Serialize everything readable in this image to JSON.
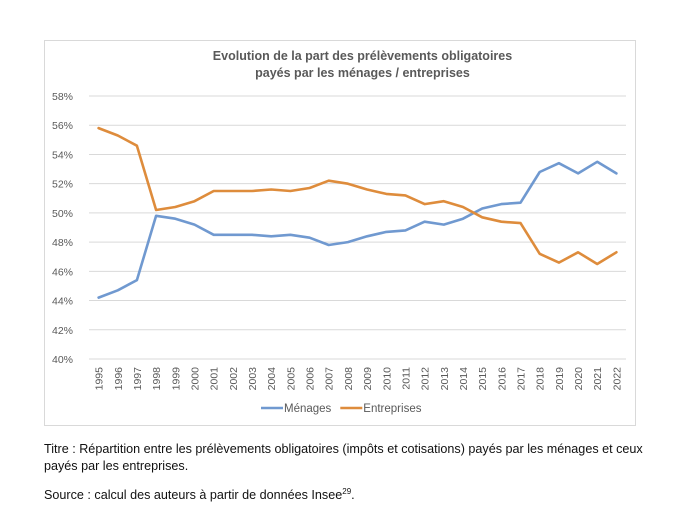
{
  "chart_data": {
    "type": "line",
    "title_lines": [
      "Evolution de la part des prélèvements obligatoires",
      "payés par les ménages / entreprises"
    ],
    "x": [
      "1995",
      "1996",
      "1997",
      "1998",
      "1999",
      "2000",
      "2001",
      "2002",
      "2003",
      "2004",
      "2005",
      "2006",
      "2007",
      "2008",
      "2009",
      "2010",
      "2011",
      "2012",
      "2013",
      "2014",
      "2015",
      "2016",
      "2017",
      "2018",
      "2019",
      "2020",
      "2021",
      "2022"
    ],
    "ylim": [
      40,
      58
    ],
    "yticks": [
      "40%",
      "42%",
      "44%",
      "46%",
      "48%",
      "50%",
      "52%",
      "54%",
      "56%",
      "58%"
    ],
    "grid": true,
    "legend_position": "bottom",
    "series": [
      {
        "name": "Ménages",
        "color": "#7099d0",
        "values": [
          44.2,
          44.7,
          45.4,
          49.8,
          49.6,
          49.2,
          48.5,
          48.5,
          48.5,
          48.4,
          48.5,
          48.3,
          47.8,
          48.0,
          48.4,
          48.7,
          48.8,
          49.4,
          49.2,
          49.6,
          50.3,
          50.6,
          50.7,
          52.8,
          53.4,
          52.7,
          53.5,
          52.7
        ]
      },
      {
        "name": "Entreprises",
        "color": "#de8c3c",
        "values": [
          55.8,
          55.3,
          54.6,
          50.2,
          50.4,
          50.8,
          51.5,
          51.5,
          51.5,
          51.6,
          51.5,
          51.7,
          52.2,
          52.0,
          51.6,
          51.3,
          51.2,
          50.6,
          50.8,
          50.4,
          49.7,
          49.4,
          49.3,
          47.2,
          46.6,
          47.3,
          46.5,
          47.3
        ]
      }
    ]
  },
  "caption": {
    "title_text": "Titre : Répartition entre les prélèvements obligatoires (impôts et cotisations) payés par les ménages et ceux payés par les entreprises.",
    "source_text": "Source : calcul des auteurs à partir de données Insee",
    "source_note": "29",
    "source_end": "."
  }
}
